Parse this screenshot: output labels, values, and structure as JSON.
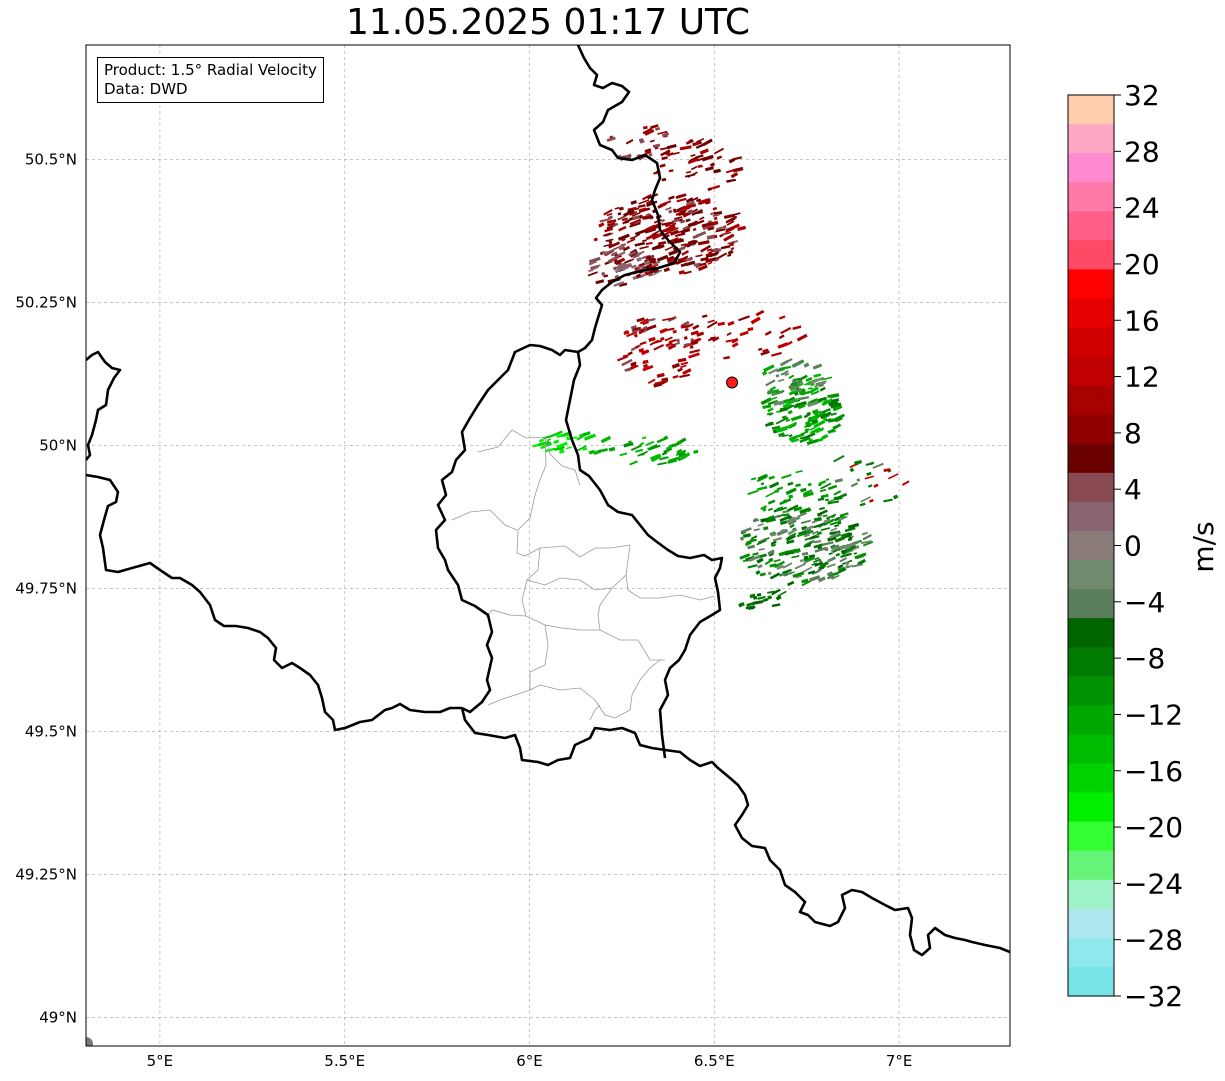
{
  "title": "11.05.2025 01:17 UTC",
  "info_box": {
    "product": "Product: 1.5° Radial Velocity",
    "data": "Data: DWD"
  },
  "map": {
    "lon_range": [
      4.8,
      7.3
    ],
    "lat_range": [
      48.95,
      50.7
    ],
    "lon_ticks": [
      "5°E",
      "5.5°E",
      "6°E",
      "6.5°E",
      "7°E"
    ],
    "lat_ticks": [
      "50.5°N",
      "50.25°N",
      "50°N",
      "49.75°N",
      "49.5°N",
      "49.25°N",
      "49°N"
    ],
    "radar_site": {
      "lon": 6.548,
      "lat": 50.11,
      "color": "#ff1a1a"
    }
  },
  "colorbar": {
    "label": "m/s",
    "tick_labels": [
      "32",
      "28",
      "24",
      "20",
      "16",
      "12",
      "8",
      "4",
      "0",
      "−4",
      "−8",
      "−12",
      "−16",
      "−20",
      "−24",
      "−28",
      "−32"
    ],
    "colors_top_to_bottom": [
      "#ffcfad",
      "#ffa8c3",
      "#ff8ad0",
      "#ff7aa8",
      "#ff5f88",
      "#ff4a66",
      "#ff0000",
      "#e60000",
      "#d00000",
      "#c00000",
      "#a80000",
      "#900000",
      "#6a0000",
      "#8a4a52",
      "#8a6470",
      "#8a7a78",
      "#6f8a6f",
      "#5a7f5a",
      "#006400",
      "#007a00",
      "#009000",
      "#00a800",
      "#00bc00",
      "#00d200",
      "#00f000",
      "#33ff33",
      "#66f57a",
      "#9ef2c7",
      "#aee8ee",
      "#8ee8ec",
      "#77e4ea"
    ]
  }
}
